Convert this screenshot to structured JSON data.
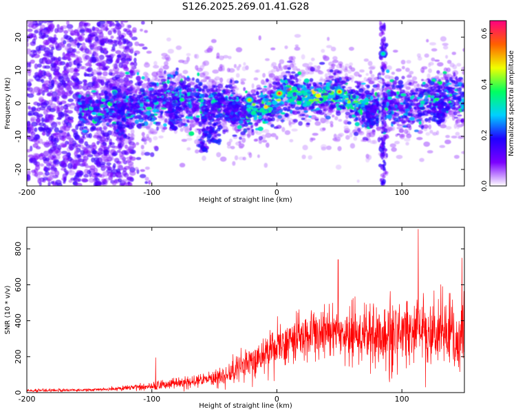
{
  "figure": {
    "title": "S126.2025.269.01.41.G28"
  },
  "chart_data": [
    {
      "type": "heatmap",
      "xlabel": "Height of straight line (km)",
      "ylabel": "Frequency (Hz)",
      "xlim": [
        -200,
        150
      ],
      "ylim": [
        -25,
        25
      ],
      "xticks": [
        -200,
        -100,
        0,
        100
      ],
      "yticks": [
        -20,
        -10,
        0,
        10,
        20
      ],
      "colorbar": {
        "label": "Normalized spectral amplitude",
        "range": [
          0.0,
          0.65
        ],
        "ticks": [
          0.0,
          0.2,
          0.4,
          0.6
        ],
        "tick_labels": [
          "0.0",
          "0.2",
          "0.4",
          "0.6"
        ],
        "colors": [
          "#ffffff",
          "#7b00ff",
          "#2000ff",
          "#00d0ff",
          "#00ff60",
          "#f0ff00",
          "#ff6000",
          "#ff0080"
        ]
      },
      "features": [
        {
          "name": "main signal band",
          "x_range": [
            -160,
            150
          ],
          "freq_center": 0,
          "freq_halfwidth": 6
        },
        {
          "name": "spike",
          "x": 85,
          "freq_range": [
            -25,
            25
          ]
        },
        {
          "name": "noise region",
          "x_range": [
            -200,
            -120
          ],
          "freq_range": [
            -25,
            25
          ]
        }
      ],
      "peak_points": [
        {
          "x": 2,
          "freq": 3,
          "amp": 0.62
        },
        {
          "x": 50,
          "freq": 3.5,
          "amp": 0.55
        },
        {
          "x": -22,
          "freq": 1,
          "amp": 0.5
        },
        {
          "x": 85,
          "freq": 15,
          "amp": 0.35
        }
      ]
    },
    {
      "type": "line",
      "xlabel": "Height of straight line (km)",
      "ylabel": "SNR (10 * v/v)",
      "xlim": [
        -200,
        150
      ],
      "ylim": [
        0,
        920
      ],
      "xticks": [
        -200,
        -100,
        0,
        100
      ],
      "yticks": [
        0,
        200,
        400,
        600,
        800
      ],
      "series": [
        {
          "name": "SNR",
          "color": "#ff0000",
          "envelope": {
            "x": [
              -200,
              -150,
              -120,
              -100,
              -80,
              -60,
              -40,
              -20,
              0,
              20,
              40,
              60,
              80,
              100,
              120,
              150
            ],
            "mean": [
              10,
              15,
              25,
              35,
              50,
              70,
              100,
              170,
              260,
              310,
              340,
              320,
              310,
              330,
              330,
              300
            ],
            "spread": [
              8,
              10,
              15,
              25,
              35,
              45,
              70,
              100,
              120,
              140,
              160,
              170,
              200,
              220,
              230,
              220
            ]
          },
          "notable_peaks": [
            {
              "x": -97,
              "y": 195
            },
            {
              "x": 49,
              "y": 740
            },
            {
              "x": 113,
              "y": 910
            },
            {
              "x": 148,
              "y": 750
            }
          ]
        }
      ]
    }
  ]
}
